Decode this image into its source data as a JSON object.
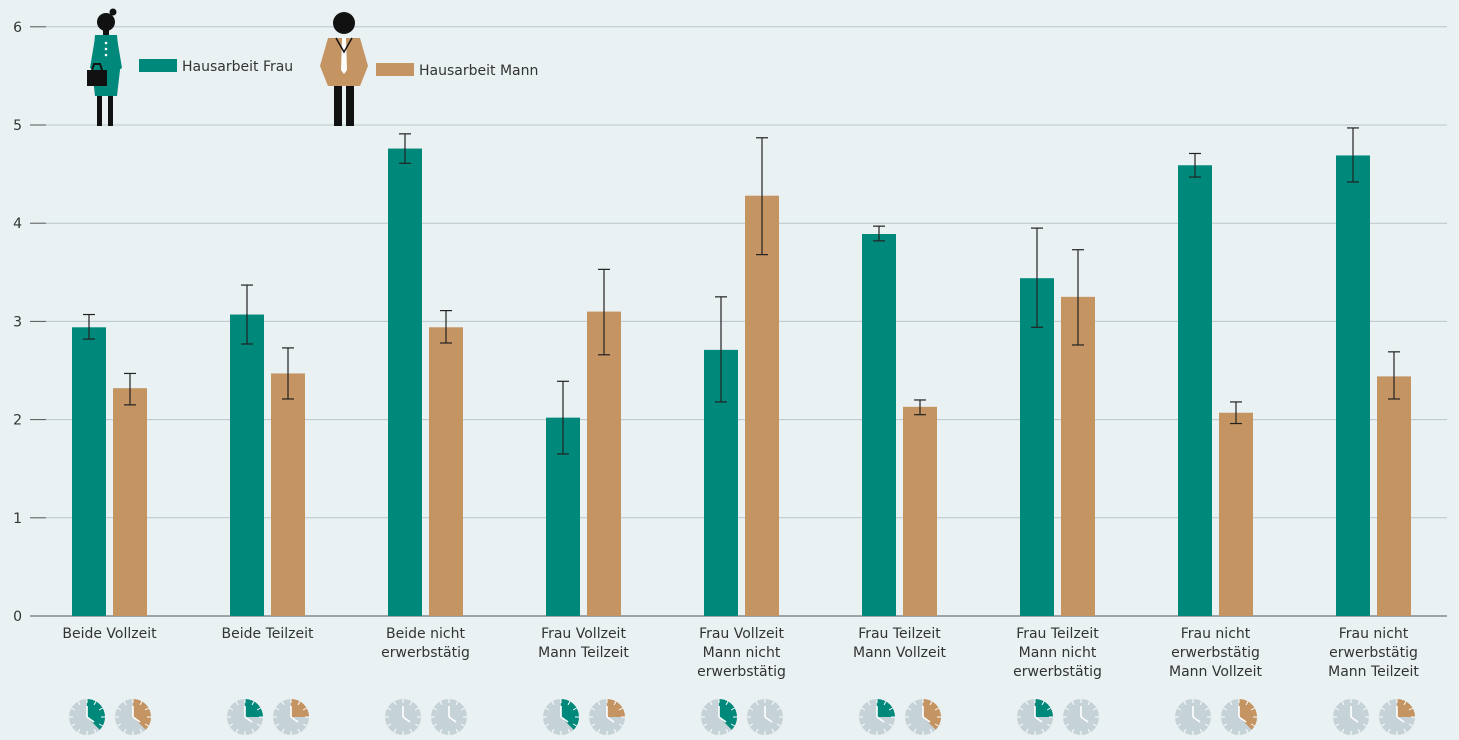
{
  "colors": {
    "frau": "#00897b",
    "mann": "#c49462",
    "background": "#e9f1f3",
    "grid": "#b9c6ca",
    "clock": "#c5d2d8"
  },
  "icons": [
    "woman-figure-icon",
    "man-figure-icon",
    "clock-icon"
  ],
  "chart_data": {
    "type": "bar",
    "ylim": [
      0,
      6
    ],
    "yticks": [
      "0",
      "1",
      "2",
      "3",
      "4",
      "5",
      "6"
    ],
    "legend": [
      {
        "label": "Hausarbeit Frau",
        "series": "frau"
      },
      {
        "label": "Hausarbeit Mann",
        "series": "mann"
      }
    ],
    "categories": [
      [
        "Beide Vollzeit"
      ],
      [
        "Beide Teilzeit"
      ],
      [
        "Beide nicht",
        "erwerbstätig"
      ],
      [
        "Frau Vollzeit",
        "Mann Teilzeit"
      ],
      [
        "Frau Vollzeit",
        "Mann nicht",
        "erwerbstätig"
      ],
      [
        "Frau Teilzeit",
        "Mann Vollzeit"
      ],
      [
        "Frau Teilzeit",
        "Mann nicht",
        "erwerbstätig"
      ],
      [
        "Frau nicht",
        "erwerbstätig",
        "Mann Vollzeit"
      ],
      [
        "Frau nicht",
        "erwerbstätig",
        "Mann Teilzeit"
      ]
    ],
    "series": [
      {
        "key": "frau",
        "values": [
          2.94,
          3.07,
          4.76,
          2.02,
          2.71,
          3.89,
          3.44,
          4.59,
          4.69
        ],
        "error_low": [
          2.82,
          2.77,
          4.61,
          1.65,
          2.18,
          3.82,
          2.94,
          4.47,
          4.42
        ],
        "error_high": [
          3.07,
          3.37,
          4.91,
          2.39,
          3.25,
          3.97,
          3.95,
          4.71,
          4.97
        ],
        "work_fraction": [
          0.375,
          0.25,
          0,
          0.375,
          0.375,
          0.25,
          0.25,
          0,
          0
        ]
      },
      {
        "key": "mann",
        "values": [
          2.32,
          2.47,
          2.94,
          3.1,
          4.28,
          2.13,
          3.25,
          2.07,
          2.44
        ],
        "error_low": [
          2.15,
          2.21,
          2.78,
          2.66,
          3.68,
          2.05,
          2.76,
          1.96,
          2.21
        ],
        "error_high": [
          2.47,
          2.73,
          3.11,
          3.53,
          4.87,
          2.2,
          3.73,
          2.18,
          2.69
        ],
        "work_fraction": [
          0.375,
          0.25,
          0,
          0.25,
          0,
          0.375,
          0,
          0.375,
          0.25
        ]
      }
    ]
  }
}
